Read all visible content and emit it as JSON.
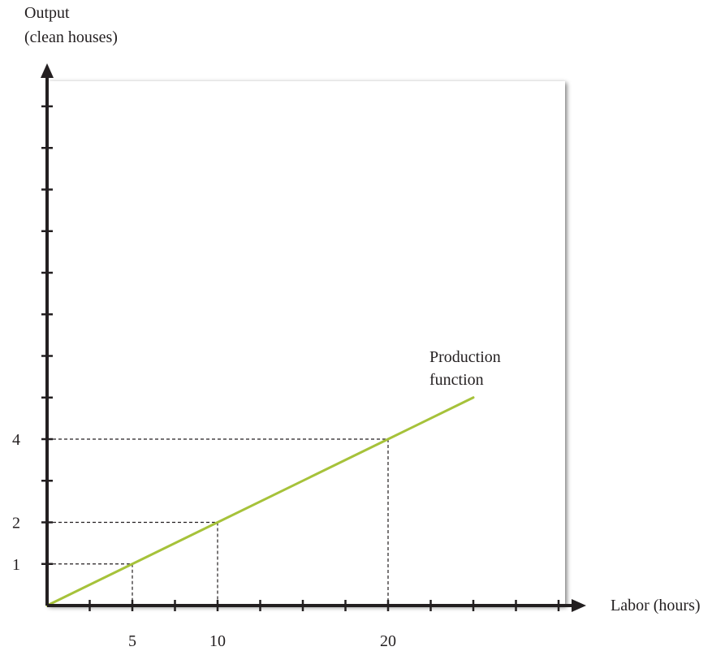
{
  "chart_data": {
    "type": "line",
    "title": "",
    "ylabel_line1": "Output",
    "ylabel_line2": "(clean houses)",
    "xlabel": "Labor (hours)",
    "xlim": [
      0,
      30
    ],
    "ylim": [
      0,
      12
    ],
    "x_ticks": [
      2.5,
      5,
      7.5,
      10,
      12.5,
      15,
      17.5,
      20,
      22.5,
      25,
      27.5,
      30
    ],
    "y_ticks": [
      1,
      2,
      3,
      4,
      5,
      6,
      7,
      8,
      9,
      10,
      11,
      12
    ],
    "x_tick_labels": [
      {
        "value": 5,
        "label": "5"
      },
      {
        "value": 10,
        "label": "10"
      },
      {
        "value": 20,
        "label": "20"
      }
    ],
    "y_tick_labels": [
      {
        "value": 1,
        "label": "1"
      },
      {
        "value": 2,
        "label": "2"
      },
      {
        "value": 4,
        "label": "4"
      }
    ],
    "series": [
      {
        "name": "Production function",
        "color": "#a6c23a",
        "x": [
          0,
          5,
          10,
          20,
          25
        ],
        "y": [
          0,
          1,
          2,
          4,
          5
        ]
      }
    ],
    "reference_points": [
      {
        "x": 5,
        "y": 1
      },
      {
        "x": 10,
        "y": 2
      },
      {
        "x": 20,
        "y": 4
      }
    ],
    "annotation_line1": "Production",
    "annotation_line2": "function",
    "grid": false
  }
}
